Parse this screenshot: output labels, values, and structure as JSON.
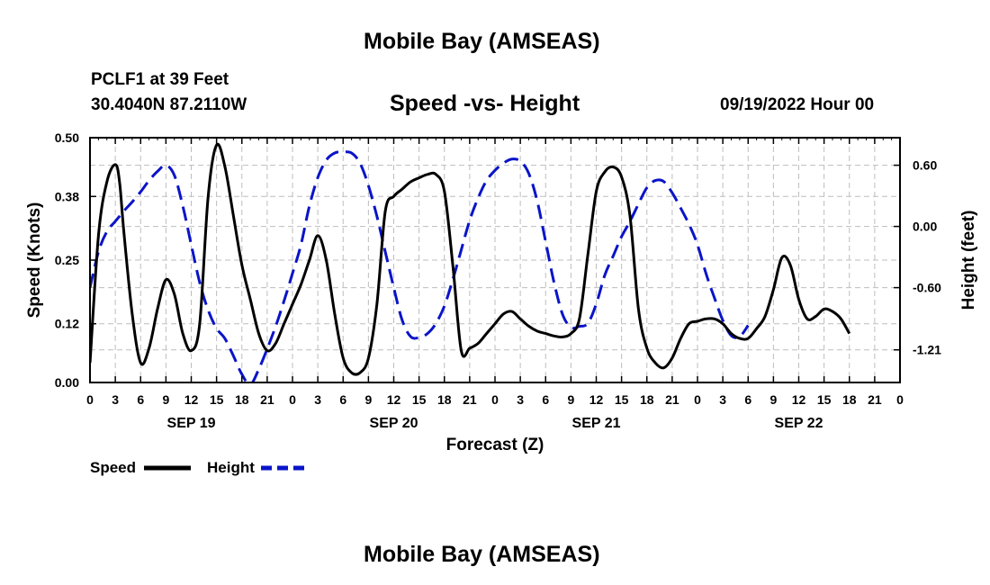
{
  "header": {
    "title": "Mobile Bay (AMSEAS)",
    "station": "PCLF1 at 39 Feet",
    "coords": "30.4040N  87.2110W",
    "subtitle": "Speed -vs- Height",
    "timestamp": "09/19/2022 Hour 00"
  },
  "footer": {
    "title": "Mobile Bay (AMSEAS)"
  },
  "chart_data": {
    "type": "line",
    "xlabel": "Forecast (Z)",
    "ylabel": "Speed (Knots)",
    "ylabel_right": "Height (feet)",
    "xlim": [
      0,
      96
    ],
    "ylim": [
      0,
      0.5
    ],
    "ylim_right": [
      -1.53,
      0.87
    ],
    "x_ticks": [
      0,
      3,
      6,
      9,
      12,
      15,
      18,
      21,
      24,
      27,
      30,
      33,
      36,
      39,
      42,
      45,
      48,
      51,
      54,
      57,
      60,
      63,
      66,
      69,
      72,
      75,
      78,
      81,
      84,
      87,
      90,
      93,
      96
    ],
    "x_tick_labels": [
      "0",
      "3",
      "6",
      "9",
      "12",
      "15",
      "18",
      "21",
      "0",
      "3",
      "6",
      "9",
      "12",
      "15",
      "18",
      "21",
      "0",
      "3",
      "6",
      "9",
      "12",
      "15",
      "18",
      "21",
      "0",
      "3",
      "6",
      "9",
      "12",
      "15",
      "18",
      "21",
      "0"
    ],
    "day_labels": [
      {
        "label": "SEP 19",
        "x": 12
      },
      {
        "label": "SEP 20",
        "x": 36
      },
      {
        "label": "SEP 21",
        "x": 60
      },
      {
        "label": "SEP 22",
        "x": 84
      }
    ],
    "y_ticks": [
      0,
      0.12,
      0.25,
      0.38,
      0.5
    ],
    "y_tick_labels": [
      "0.00",
      "0.12",
      "0.25",
      "0.38",
      "0.50"
    ],
    "y_ticks_right": [
      -1.21,
      -0.6,
      0.0,
      0.6
    ],
    "y_tick_labels_right": [
      "-1.21",
      "-0.60",
      "0.00",
      "0.60"
    ],
    "grid": true,
    "legend": "bottom-left",
    "colors": {
      "speed": "#000000",
      "height": "#0a14c8"
    },
    "series": [
      {
        "name": "Speed",
        "axis": "left",
        "style": "solid",
        "points": [
          [
            0,
            0.04
          ],
          [
            1,
            0.3
          ],
          [
            2,
            0.41
          ],
          [
            3,
            0.445
          ],
          [
            3.5,
            0.41
          ],
          [
            4,
            0.31
          ],
          [
            5,
            0.14
          ],
          [
            6,
            0.04
          ],
          [
            7,
            0.07
          ],
          [
            8,
            0.15
          ],
          [
            9,
            0.21
          ],
          [
            10,
            0.18
          ],
          [
            11,
            0.1
          ],
          [
            12,
            0.065
          ],
          [
            13,
            0.12
          ],
          [
            14,
            0.38
          ],
          [
            15,
            0.485
          ],
          [
            16,
            0.44
          ],
          [
            17,
            0.34
          ],
          [
            18,
            0.24
          ],
          [
            19,
            0.17
          ],
          [
            20,
            0.1
          ],
          [
            21,
            0.065
          ],
          [
            22,
            0.08
          ],
          [
            23,
            0.12
          ],
          [
            24,
            0.16
          ],
          [
            25,
            0.2
          ],
          [
            26,
            0.25
          ],
          [
            27,
            0.3
          ],
          [
            28,
            0.25
          ],
          [
            29,
            0.14
          ],
          [
            30,
            0.05
          ],
          [
            31,
            0.02
          ],
          [
            32,
            0.02
          ],
          [
            33,
            0.05
          ],
          [
            34,
            0.16
          ],
          [
            35,
            0.35
          ],
          [
            36,
            0.38
          ],
          [
            37,
            0.395
          ],
          [
            38,
            0.41
          ],
          [
            39,
            0.418
          ],
          [
            40,
            0.425
          ],
          [
            41,
            0.425
          ],
          [
            42,
            0.39
          ],
          [
            43,
            0.24
          ],
          [
            44,
            0.065
          ],
          [
            45,
            0.07
          ],
          [
            46,
            0.08
          ],
          [
            47,
            0.1
          ],
          [
            48,
            0.12
          ],
          [
            49,
            0.14
          ],
          [
            50,
            0.145
          ],
          [
            51,
            0.13
          ],
          [
            52,
            0.115
          ],
          [
            53,
            0.105
          ],
          [
            54,
            0.1
          ],
          [
            55,
            0.095
          ],
          [
            56,
            0.093
          ],
          [
            57,
            0.1
          ],
          [
            58,
            0.13
          ],
          [
            59,
            0.26
          ],
          [
            60,
            0.39
          ],
          [
            61,
            0.43
          ],
          [
            62,
            0.44
          ],
          [
            63,
            0.42
          ],
          [
            64,
            0.34
          ],
          [
            65,
            0.15
          ],
          [
            66,
            0.07
          ],
          [
            67,
            0.04
          ],
          [
            68,
            0.03
          ],
          [
            69,
            0.05
          ],
          [
            70,
            0.09
          ],
          [
            71,
            0.12
          ],
          [
            72,
            0.125
          ],
          [
            73,
            0.13
          ],
          [
            74,
            0.13
          ],
          [
            75,
            0.12
          ],
          [
            76,
            0.1
          ],
          [
            77,
            0.09
          ],
          [
            78,
            0.09
          ],
          [
            79,
            0.11
          ],
          [
            80,
            0.135
          ],
          [
            81,
            0.19
          ],
          [
            82,
            0.255
          ],
          [
            83,
            0.24
          ],
          [
            84,
            0.17
          ],
          [
            85,
            0.13
          ],
          [
            86,
            0.135
          ],
          [
            87,
            0.15
          ],
          [
            88,
            0.145
          ],
          [
            89,
            0.13
          ],
          [
            90,
            0.1
          ]
        ]
      },
      {
        "name": "Height",
        "axis": "right",
        "style": "dashed",
        "points": [
          [
            0,
            -0.6
          ],
          [
            1,
            -0.25
          ],
          [
            2,
            -0.05
          ],
          [
            3,
            0.05
          ],
          [
            4,
            0.15
          ],
          [
            5,
            0.24
          ],
          [
            6,
            0.34
          ],
          [
            7,
            0.45
          ],
          [
            8,
            0.54
          ],
          [
            9,
            0.6
          ],
          [
            10,
            0.5
          ],
          [
            11,
            0.2
          ],
          [
            12,
            -0.18
          ],
          [
            13,
            -0.55
          ],
          [
            14,
            -0.82
          ],
          [
            15,
            -1.0
          ],
          [
            16,
            -1.1
          ],
          [
            17,
            -1.27
          ],
          [
            18,
            -1.45
          ],
          [
            19,
            -1.55
          ],
          [
            20,
            -1.4
          ],
          [
            21,
            -1.2
          ],
          [
            22,
            -0.98
          ],
          [
            23,
            -0.73
          ],
          [
            24,
            -0.46
          ],
          [
            25,
            -0.18
          ],
          [
            26,
            0.2
          ],
          [
            27,
            0.48
          ],
          [
            28,
            0.65
          ],
          [
            29,
            0.72
          ],
          [
            30,
            0.73
          ],
          [
            31,
            0.72
          ],
          [
            32,
            0.62
          ],
          [
            33,
            0.4
          ],
          [
            34,
            0.1
          ],
          [
            35,
            -0.25
          ],
          [
            36,
            -0.6
          ],
          [
            37,
            -0.92
          ],
          [
            38,
            -1.08
          ],
          [
            39,
            -1.09
          ],
          [
            40,
            -1.05
          ],
          [
            41,
            -0.95
          ],
          [
            42,
            -0.78
          ],
          [
            43,
            -0.52
          ],
          [
            44,
            -0.23
          ],
          [
            45,
            0.06
          ],
          [
            46,
            0.28
          ],
          [
            47,
            0.45
          ],
          [
            48,
            0.55
          ],
          [
            49,
            0.62
          ],
          [
            50,
            0.66
          ],
          [
            51,
            0.64
          ],
          [
            52,
            0.52
          ],
          [
            53,
            0.25
          ],
          [
            54,
            -0.15
          ],
          [
            55,
            -0.55
          ],
          [
            56,
            -0.86
          ],
          [
            57,
            -0.99
          ],
          [
            58,
            -0.98
          ],
          [
            59,
            -0.95
          ],
          [
            60,
            -0.76
          ],
          [
            61,
            -0.48
          ],
          [
            62,
            -0.29
          ],
          [
            63,
            -0.1
          ],
          [
            64,
            0.05
          ],
          [
            65,
            0.22
          ],
          [
            66,
            0.38
          ],
          [
            67,
            0.45
          ],
          [
            68,
            0.44
          ],
          [
            69,
            0.33
          ],
          [
            70,
            0.18
          ],
          [
            71,
            0.02
          ],
          [
            72,
            -0.18
          ],
          [
            73,
            -0.46
          ],
          [
            74,
            -0.7
          ],
          [
            75,
            -0.92
          ],
          [
            76,
            -1.07
          ],
          [
            77,
            -1.08
          ],
          [
            78,
            -0.97
          ]
        ]
      }
    ]
  },
  "legend_items": [
    {
      "label": "Speed",
      "color": "#000000",
      "style": "solid"
    },
    {
      "label": "Height",
      "color": "#0a14c8",
      "style": "dashed"
    }
  ]
}
